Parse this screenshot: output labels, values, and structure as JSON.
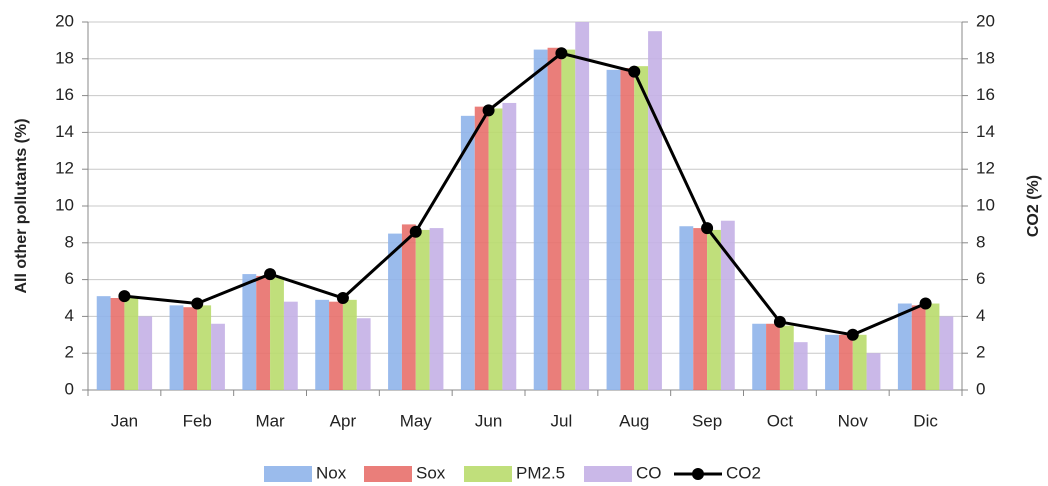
{
  "chart_data": {
    "type": "bar",
    "categories": [
      "Jan",
      "Feb",
      "Mar",
      "Apr",
      "May",
      "Jun",
      "Jul",
      "Aug",
      "Sep",
      "Oct",
      "Nov",
      "Dic"
    ],
    "y_label": "All other pollutants (%)",
    "y2_label": "CO2 (%)",
    "ylim": [
      0,
      20
    ],
    "yticks": [
      0,
      2,
      4,
      6,
      8,
      10,
      12,
      14,
      16,
      18,
      20
    ],
    "y2lim": [
      0,
      20
    ],
    "y2ticks": [
      0,
      2,
      4,
      6,
      8,
      10,
      12,
      14,
      16,
      18,
      20
    ],
    "grid": true,
    "legend": "bottom",
    "series": [
      {
        "name": "Nox",
        "color": "#8fb4ea",
        "values": [
          5.1,
          4.6,
          6.3,
          4.9,
          8.5,
          14.9,
          18.5,
          17.4,
          8.9,
          3.6,
          3.0,
          4.7
        ]
      },
      {
        "name": "Sox",
        "color": "#e8706c",
        "values": [
          5.0,
          4.5,
          6.2,
          4.8,
          9.0,
          15.4,
          18.6,
          17.5,
          8.8,
          3.6,
          3.0,
          4.6
        ]
      },
      {
        "name": "PM2.5",
        "color": "#b9dc6d",
        "values": [
          5.0,
          4.6,
          6.1,
          4.9,
          8.7,
          15.3,
          18.5,
          17.6,
          8.7,
          3.5,
          3.0,
          4.7
        ]
      },
      {
        "name": "CO",
        "color": "#c4b0e6",
        "values": [
          4.0,
          3.6,
          4.8,
          3.9,
          8.8,
          15.6,
          20.0,
          19.5,
          9.2,
          2.6,
          2.0,
          4.0
        ]
      },
      {
        "name": "CO2",
        "color": "#000000",
        "type": "line",
        "axis": "y2",
        "values": [
          5.1,
          4.7,
          6.3,
          5.0,
          8.6,
          15.2,
          18.3,
          17.3,
          8.8,
          3.7,
          3.0,
          4.7
        ]
      }
    ]
  }
}
